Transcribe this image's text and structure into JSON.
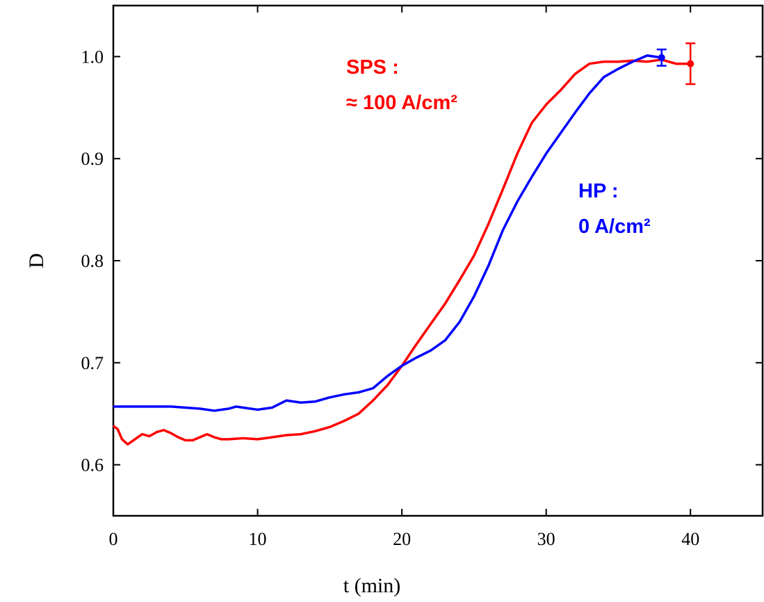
{
  "chart_data": {
    "type": "line",
    "xlabel": "t (min)",
    "ylabel": "D",
    "xlim": [
      0,
      45
    ],
    "ylim": [
      0.55,
      1.05
    ],
    "x_ticks": [
      0,
      10,
      20,
      30,
      40
    ],
    "x_tick_labels": [
      "0",
      "10",
      "20",
      "30",
      "40"
    ],
    "y_ticks": [
      0.6,
      0.7,
      0.8,
      0.9,
      1.0
    ],
    "y_tick_labels": [
      "0.6",
      "0.7",
      "0.8",
      "0.9",
      "1.0"
    ],
    "grid": false,
    "series": [
      {
        "label_lines": [
          "SPS :",
          "≈ 100 A/cm²"
        ],
        "color": "#ff0000",
        "points": [
          [
            0,
            0.638
          ],
          [
            0.3,
            0.635
          ],
          [
            0.6,
            0.625
          ],
          [
            1.0,
            0.62
          ],
          [
            1.5,
            0.625
          ],
          [
            2.0,
            0.63
          ],
          [
            2.5,
            0.628
          ],
          [
            3.0,
            0.632
          ],
          [
            3.5,
            0.634
          ],
          [
            4.0,
            0.631
          ],
          [
            4.5,
            0.627
          ],
          [
            5.0,
            0.624
          ],
          [
            5.5,
            0.624
          ],
          [
            6.0,
            0.627
          ],
          [
            6.5,
            0.63
          ],
          [
            7.0,
            0.627
          ],
          [
            7.5,
            0.625
          ],
          [
            8.0,
            0.625
          ],
          [
            9.0,
            0.626
          ],
          [
            10.0,
            0.625
          ],
          [
            11.0,
            0.627
          ],
          [
            12.0,
            0.629
          ],
          [
            13.0,
            0.63
          ],
          [
            14.0,
            0.633
          ],
          [
            15.0,
            0.637
          ],
          [
            16.0,
            0.643
          ],
          [
            17.0,
            0.65
          ],
          [
            18.0,
            0.663
          ],
          [
            19.0,
            0.678
          ],
          [
            20.0,
            0.697
          ],
          [
            21.0,
            0.718
          ],
          [
            22.0,
            0.738
          ],
          [
            23.0,
            0.758
          ],
          [
            24.0,
            0.781
          ],
          [
            25.0,
            0.805
          ],
          [
            26.0,
            0.836
          ],
          [
            27.0,
            0.87
          ],
          [
            28.0,
            0.905
          ],
          [
            29.0,
            0.935
          ],
          [
            30.0,
            0.953
          ],
          [
            31.0,
            0.967
          ],
          [
            32.0,
            0.983
          ],
          [
            33.0,
            0.993
          ],
          [
            34.0,
            0.995
          ],
          [
            35.0,
            0.995
          ],
          [
            36.0,
            0.996
          ],
          [
            37.0,
            0.995
          ],
          [
            38.0,
            0.997
          ],
          [
            39.0,
            0.993
          ],
          [
            40.0,
            0.993
          ]
        ],
        "endpoint": {
          "x": 40.0,
          "y": 0.993,
          "err": 0.02
        }
      },
      {
        "label_lines": [
          "HP :",
          "0 A/cm²"
        ],
        "color": "#0000ff",
        "points": [
          [
            0,
            0.657
          ],
          [
            2.0,
            0.657
          ],
          [
            4.0,
            0.657
          ],
          [
            5.0,
            0.656
          ],
          [
            6.0,
            0.655
          ],
          [
            7.0,
            0.653
          ],
          [
            8.0,
            0.655
          ],
          [
            8.5,
            0.657
          ],
          [
            9.0,
            0.656
          ],
          [
            10.0,
            0.654
          ],
          [
            11.0,
            0.656
          ],
          [
            12.0,
            0.663
          ],
          [
            13.0,
            0.661
          ],
          [
            14.0,
            0.662
          ],
          [
            15.0,
            0.666
          ],
          [
            16.0,
            0.669
          ],
          [
            17.0,
            0.671
          ],
          [
            18.0,
            0.675
          ],
          [
            19.0,
            0.687
          ],
          [
            20.0,
            0.697
          ],
          [
            21.0,
            0.705
          ],
          [
            22.0,
            0.712
          ],
          [
            23.0,
            0.722
          ],
          [
            24.0,
            0.74
          ],
          [
            25.0,
            0.765
          ],
          [
            26.0,
            0.795
          ],
          [
            27.0,
            0.83
          ],
          [
            28.0,
            0.858
          ],
          [
            29.0,
            0.882
          ],
          [
            30.0,
            0.905
          ],
          [
            31.0,
            0.925
          ],
          [
            32.0,
            0.945
          ],
          [
            33.0,
            0.964
          ],
          [
            34.0,
            0.98
          ],
          [
            35.0,
            0.988
          ],
          [
            36.0,
            0.995
          ],
          [
            37.0,
            1.001
          ],
          [
            37.5,
            1.0
          ],
          [
            38.0,
            0.999
          ]
        ],
        "endpoint": {
          "x": 38.0,
          "y": 0.999,
          "err": 0.008
        }
      }
    ]
  }
}
